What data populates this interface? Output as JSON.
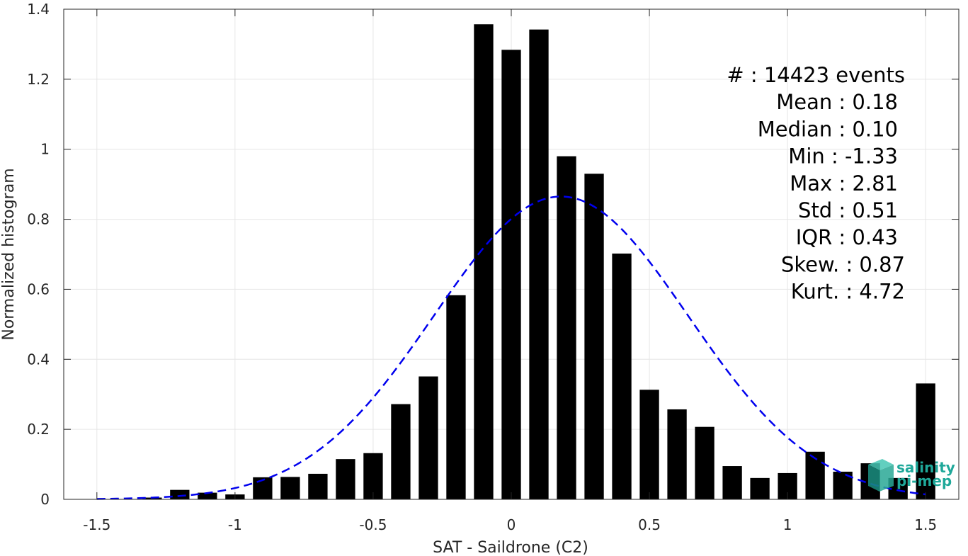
{
  "chart_data": {
    "type": "bar",
    "xlabel": "SAT - Saildrone (C2)",
    "ylabel": "Normalized histogram",
    "xlim": [
      -1.62,
      1.62
    ],
    "ylim": [
      0,
      1.4
    ],
    "xticks": [
      -1.5,
      -1,
      -0.5,
      0,
      0.5,
      1,
      1.5
    ],
    "xtick_labels": [
      "-1.5",
      "-1",
      "-0.5",
      "0",
      "0.5",
      "1",
      "1.5"
    ],
    "yticks": [
      0,
      0.2,
      0.4,
      0.6,
      0.8,
      1,
      1.2,
      1.4
    ],
    "ytick_labels": [
      "0",
      "0.2",
      "0.4",
      "0.6",
      "0.8",
      "1",
      "1.2",
      "1.4"
    ],
    "grid": true,
    "bar_width": 0.07,
    "bars": {
      "x": [
        -1.3,
        -1.2,
        -1.1,
        -1.0,
        -0.9,
        -0.8,
        -0.7,
        -0.6,
        -0.5,
        -0.4,
        -0.3,
        -0.2,
        -0.1,
        0.0,
        0.1,
        0.2,
        0.3,
        0.4,
        0.5,
        0.6,
        0.7,
        0.8,
        0.9,
        1.0,
        1.1,
        1.2,
        1.3,
        1.4,
        1.5
      ],
      "values": [
        0.005,
        0.027,
        0.019,
        0.014,
        0.063,
        0.064,
        0.073,
        0.115,
        0.132,
        0.272,
        0.351,
        0.583,
        1.357,
        1.284,
        1.342,
        0.98,
        0.93,
        0.702,
        0.313,
        0.257,
        0.207,
        0.095,
        0.061,
        0.075,
        0.136,
        0.079,
        0.103,
        0.061,
        0.331
      ],
      "color": "#000000"
    },
    "fit_curve": {
      "style": "dashed",
      "color": "#0000ee",
      "mean": 0.18,
      "std": 0.46,
      "peak": 0.865,
      "x_range": [
        -1.5,
        1.5
      ]
    },
    "stats": [
      {
        "label": "#",
        "sep": ": ",
        "value": "14423 events"
      },
      {
        "label": "Mean",
        "sep": " : ",
        "value": "0.18"
      },
      {
        "label": "Median",
        "sep": " : ",
        "value": "0.10"
      },
      {
        "label": "Min",
        "sep": " : ",
        "value": "-1.33"
      },
      {
        "label": "Max",
        "sep": " : ",
        "value": "2.81"
      },
      {
        "label": "Std",
        "sep": " : ",
        "value": "0.51"
      },
      {
        "label": "IQR",
        "sep": " : ",
        "value": "0.43"
      },
      {
        "label": "Skew.",
        "sep": " : ",
        "value": "0.87"
      },
      {
        "label": "Kurt.",
        "sep": " : ",
        "value": "4.72"
      }
    ]
  },
  "logo": {
    "line1": "salinity",
    "line2": "pi-mep",
    "color": "#1fa89a"
  }
}
